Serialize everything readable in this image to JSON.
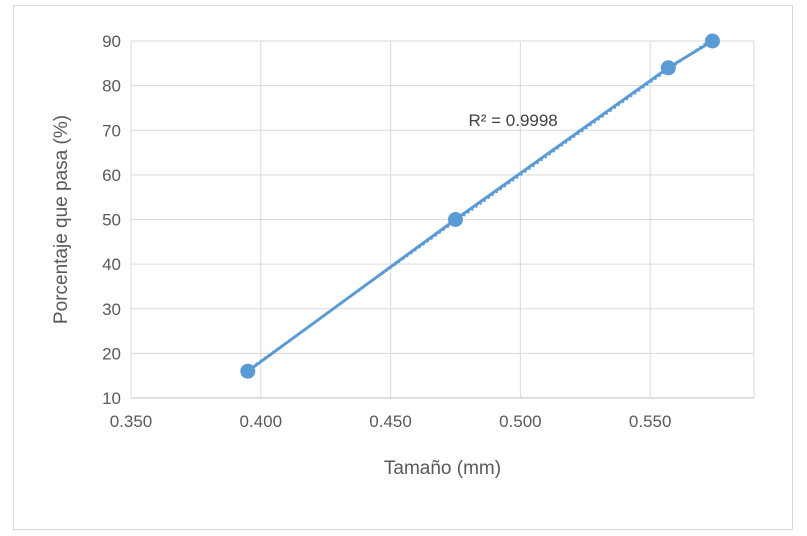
{
  "chart_data": {
    "type": "scatter",
    "title": "",
    "xlabel": "Tamaño (mm)",
    "ylabel": "Porcentaje que pasa (%)",
    "xlim": [
      0.35,
      0.59
    ],
    "ylim": [
      10,
      90
    ],
    "x_ticks": [
      "0.350",
      "0.400",
      "0.450",
      "0.500",
      "0.550"
    ],
    "y_ticks": [
      "10",
      "20",
      "30",
      "40",
      "50",
      "60",
      "70",
      "80",
      "90"
    ],
    "grid": true,
    "legend": "none",
    "series": [
      {
        "x": [
          0.395,
          0.475,
          0.557,
          0.574
        ],
        "y": [
          16,
          50,
          84,
          90
        ],
        "color": "#5b9bd5",
        "line": "connected with markers"
      }
    ],
    "trendline": {
      "type": "linear",
      "style": "dotted",
      "color": "#5b9bd5",
      "x_range": [
        0.395,
        0.574
      ]
    },
    "annotation": "R² = 0.9998",
    "annotation_position": {
      "x": 0.48,
      "y": 71
    }
  }
}
